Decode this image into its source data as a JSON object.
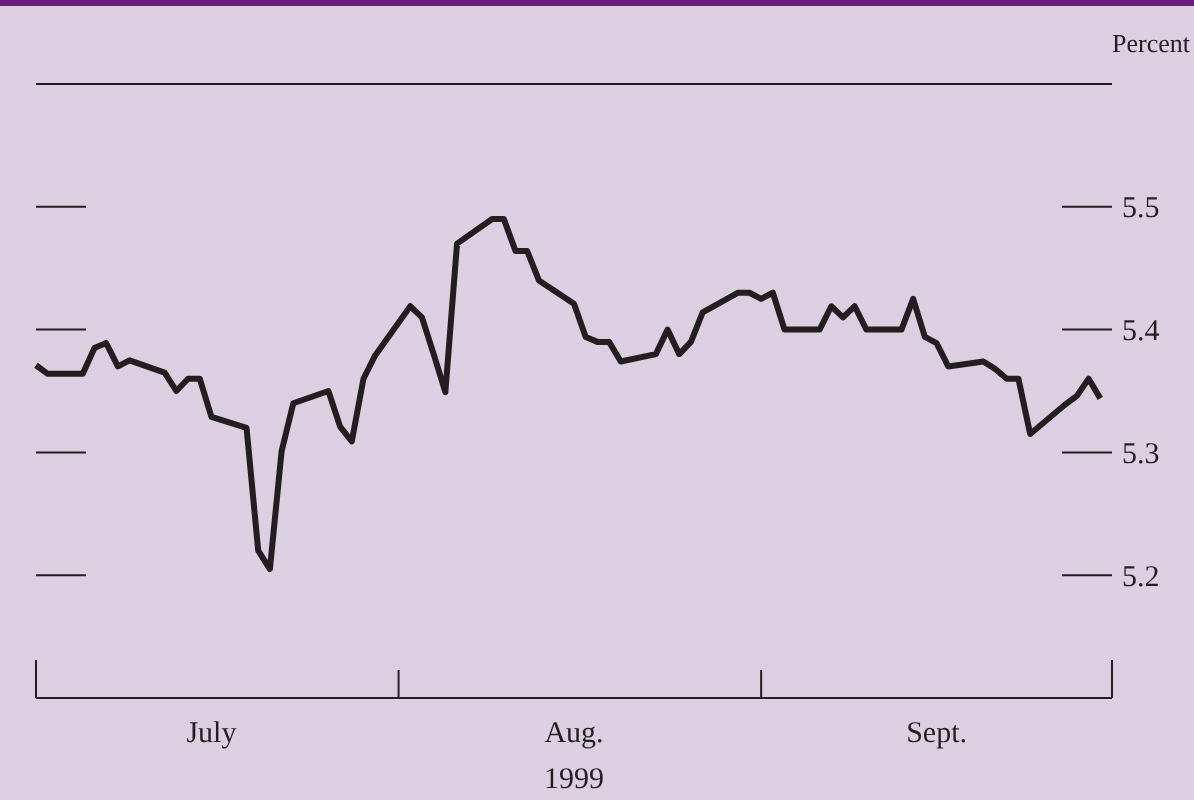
{
  "chart_data": {
    "type": "line",
    "ylabel": "Percent",
    "xlabel": "1999",
    "x": [
      "1999-07-01",
      "1999-07-02",
      "1999-07-05",
      "1999-07-06",
      "1999-07-07",
      "1999-07-08",
      "1999-07-09",
      "1999-07-12",
      "1999-07-13",
      "1999-07-14",
      "1999-07-15",
      "1999-07-16",
      "1999-07-19",
      "1999-07-20",
      "1999-07-21",
      "1999-07-22",
      "1999-07-23",
      "1999-07-26",
      "1999-07-27",
      "1999-07-28",
      "1999-07-29",
      "1999-07-30",
      "1999-08-02",
      "1999-08-03",
      "1999-08-04",
      "1999-08-05",
      "1999-08-06",
      "1999-08-09",
      "1999-08-10",
      "1999-08-11",
      "1999-08-12",
      "1999-08-13",
      "1999-08-16",
      "1999-08-17",
      "1999-08-18",
      "1999-08-19",
      "1999-08-20",
      "1999-08-23",
      "1999-08-24",
      "1999-08-25",
      "1999-08-26",
      "1999-08-27",
      "1999-08-30",
      "1999-08-31",
      "1999-09-01",
      "1999-09-02",
      "1999-09-03",
      "1999-09-06",
      "1999-09-07",
      "1999-09-08",
      "1999-09-09",
      "1999-09-10",
      "1999-09-13",
      "1999-09-14",
      "1999-09-15",
      "1999-09-16",
      "1999-09-17",
      "1999-09-20",
      "1999-09-21",
      "1999-09-22",
      "1999-09-23",
      "1999-09-24",
      "1999-09-27",
      "1999-09-28",
      "1999-09-29",
      "1999-09-30"
    ],
    "series": [
      {
        "color": "#231f20",
        "values": [
          5.371,
          5.364,
          5.364,
          5.385,
          5.389,
          5.37,
          5.375,
          5.365,
          5.35,
          5.36,
          5.36,
          5.329,
          5.32,
          5.22,
          5.205,
          5.301,
          5.34,
          5.35,
          5.321,
          5.309,
          5.36,
          5.379,
          5.419,
          5.41,
          5.38,
          5.349,
          5.47,
          5.49,
          5.49,
          5.464,
          5.464,
          5.44,
          5.421,
          5.394,
          5.39,
          5.39,
          5.374,
          5.38,
          5.4,
          5.38,
          5.39,
          5.414,
          5.43,
          5.43,
          5.425,
          5.43,
          5.4,
          5.4,
          5.419,
          5.41,
          5.419,
          5.4,
          5.4,
          5.425,
          5.394,
          5.389,
          5.37,
          5.374,
          5.368,
          5.36,
          5.36,
          5.315,
          5.339,
          5.346,
          5.36,
          5.344
        ]
      }
    ],
    "xlim": [
      "1999-07-01",
      "1999-10-01"
    ],
    "xticks": [
      {
        "value": "1999-07-16",
        "label": "July"
      },
      {
        "value": "1999-08-01",
        "label": null
      },
      {
        "value": "1999-08-16",
        "label": "Aug."
      },
      {
        "value": "1999-09-01",
        "label": null
      },
      {
        "value": "1999-09-16",
        "label": "Sept."
      }
    ],
    "ylim": [
      5.1,
      5.6
    ],
    "yticks": [
      5.2,
      5.3,
      5.4,
      5.5
    ],
    "grid": false,
    "marker": "none",
    "line_style": "solid"
  }
}
